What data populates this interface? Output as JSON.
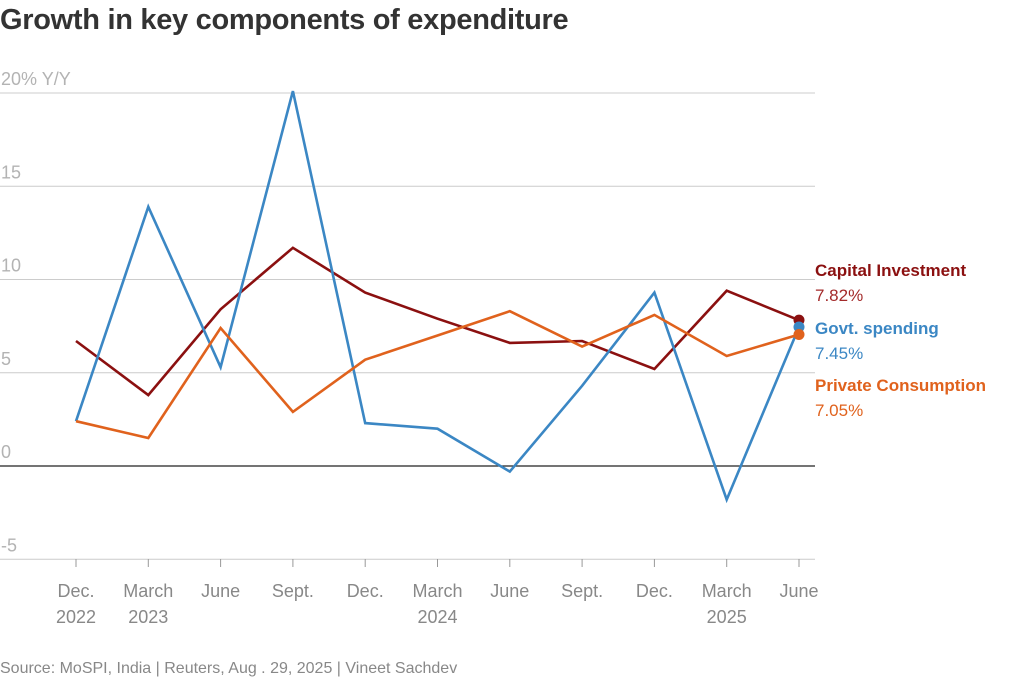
{
  "chart_data": {
    "type": "line",
    "title": "Growth in key components of expenditure",
    "ylabel": "% Y/Y",
    "ylim": [
      -5,
      20
    ],
    "yticks": [
      -5,
      0,
      5,
      10,
      15,
      20
    ],
    "ytick_labels": [
      "-5",
      "0",
      "5",
      "10",
      "15",
      "20% Y/Y"
    ],
    "categories": [
      "Dec. 2022",
      "March 2023",
      "June",
      "Sept.",
      "Dec.",
      "March 2024",
      "June",
      "Sept.",
      "Dec.",
      "March 2025",
      "June"
    ],
    "x_labels": [
      [
        "Dec.",
        "2022"
      ],
      [
        "March",
        "2023"
      ],
      [
        "June",
        ""
      ],
      [
        "Sept.",
        ""
      ],
      [
        "Dec.",
        ""
      ],
      [
        "March",
        "2024"
      ],
      [
        "June",
        ""
      ],
      [
        "Sept.",
        ""
      ],
      [
        "Dec.",
        ""
      ],
      [
        "March",
        "2025"
      ],
      [
        "June",
        ""
      ]
    ],
    "series": [
      {
        "name": "Capital Investment",
        "values": [
          6.7,
          3.8,
          8.4,
          11.7,
          9.3,
          7.9,
          6.6,
          6.7,
          5.2,
          9.4,
          7.82
        ],
        "label": "7.82%",
        "color": "#8b1010",
        "value_color": "#a32a2a"
      },
      {
        "name": "Govt. spending",
        "values": [
          2.4,
          13.9,
          5.3,
          20.1,
          2.3,
          2.0,
          -0.3,
          4.3,
          9.3,
          -1.8,
          7.45
        ],
        "label": "7.45%",
        "color": "#3b87c4",
        "value_color": "#3b87c4"
      },
      {
        "name": "Private Consumption",
        "values": [
          2.4,
          1.5,
          7.4,
          2.9,
          5.7,
          7.0,
          8.3,
          6.4,
          8.1,
          5.9,
          7.05
        ],
        "label": "7.05%",
        "color": "#e0621d",
        "value_color": "#e0621d"
      }
    ],
    "grid": true,
    "legend": "right, inline end labels"
  },
  "source": "Source: MoSPI, India | Reuters, Aug . 29, 2025 | Vineet Sachdev"
}
